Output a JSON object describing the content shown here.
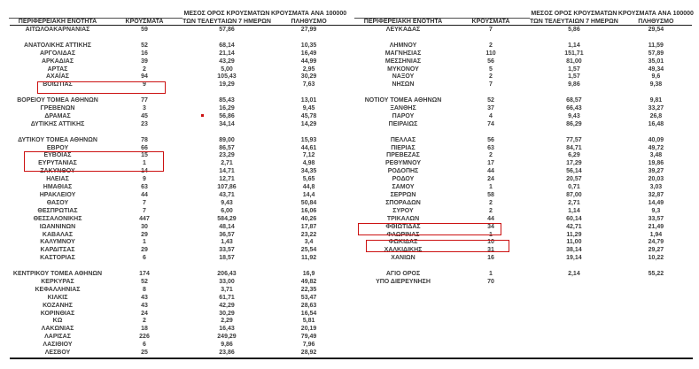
{
  "columns": {
    "region": "ΠΕΡΙΦΕΡΕΙΑΚΗ ΕΝΟΤΗΤΑ",
    "cases": "ΚΡΟΥΣΜΑΤΑ",
    "avg7_line1": "ΜΕΣΟΣ ΟΡΟΣ ΚΡΟΥΣΜΑΤΩΝ",
    "avg7_line2": "ΤΩΝ ΤΕΛΕΥΤΑΙΩΝ 7 ΗΜΕΡΩΝ",
    "per100k_line1": "ΚΡΟΥΣΜΑΤΑ ΑΝΑ 100000",
    "per100k_line2": "ΠΛΗΘΥΣΜΟ"
  },
  "tables": {
    "left": {
      "rows": [
        [
          "ΑΙΤΩΛΟΑΚΑΡΝΑΝΙΑΣ",
          "59",
          "57,86",
          "27,99"
        ],
        null,
        [
          "ΑΝΑΤΟΛΙΚΗΣ ΑΤΤΙΚΗΣ",
          "52",
          "68,14",
          "10,35"
        ],
        [
          "ΑΡΓΟΛΙΔΑΣ",
          "16",
          "21,14",
          "16,49"
        ],
        [
          "ΑΡΚΑΔΙΑΣ",
          "39",
          "43,29",
          "44,99"
        ],
        [
          "ΑΡΤΑΣ",
          "2",
          "5,00",
          "2,95"
        ],
        [
          "ΑΧΑΪΑΣ",
          "94",
          "105,43",
          "30,29"
        ],
        [
          "ΒΟΙΩΤΙΑΣ",
          "9",
          "19,29",
          "7,63"
        ],
        null,
        [
          "ΒΟΡΕΙΟΥ ΤΟΜΕΑ ΑΘΗΝΩΝ",
          "77",
          "85,43",
          "13,01"
        ],
        [
          "ΓΡΕΒΕΝΩΝ",
          "3",
          "16,29",
          "9,45"
        ],
        [
          "ΔΡΑΜΑΣ",
          "45",
          "56,86",
          "45,78"
        ],
        [
          "ΔΥΤΙΚΗΣ ΑΤΤΙΚΗΣ",
          "23",
          "34,14",
          "14,29"
        ],
        null,
        [
          "ΔΥΤΙΚΟΥ ΤΟΜΕΑ ΑΘΗΝΩΝ",
          "78",
          "89,00",
          "15,93"
        ],
        [
          "ΕΒΡΟΥ",
          "66",
          "86,57",
          "44,61"
        ],
        [
          "ΕΥΒΟΙΑΣ",
          "15",
          "23,29",
          "7,12"
        ],
        [
          "ΕΥΡΥΤΑΝΙΑΣ",
          "1",
          "2,71",
          "4,98"
        ],
        [
          "ΖΑΚΥΝΘΟΥ",
          "14",
          "14,71",
          "34,35"
        ],
        [
          "ΗΛΕΙΑΣ",
          "9",
          "12,71",
          "5,65"
        ],
        [
          "ΗΜΑΘΙΑΣ",
          "63",
          "107,86",
          "44,8"
        ],
        [
          "ΗΡΑΚΛΕΙΟΥ",
          "44",
          "43,71",
          "14,4"
        ],
        [
          "ΘΑΣΟΥ",
          "7",
          "9,43",
          "50,84"
        ],
        [
          "ΘΕΣΠΡΩΤΙΑΣ",
          "7",
          "6,00",
          "16,06"
        ],
        [
          "ΘΕΣΣΑΛΟΝΙΚΗΣ",
          "447",
          "584,29",
          "40,26"
        ],
        [
          "ΙΩΑΝΝΙΝΩΝ",
          "30",
          "48,14",
          "17,87"
        ],
        [
          "ΚΑΒΑΛΑΣ",
          "29",
          "36,57",
          "23,22"
        ],
        [
          "ΚΑΛΥΜΝΟΥ",
          "1",
          "1,43",
          "3,4"
        ],
        [
          "ΚΑΡΔΙΤΣΑΣ",
          "29",
          "33,57",
          "25,54"
        ],
        [
          "ΚΑΣΤΟΡΙΑΣ",
          "6",
          "18,57",
          "11,92"
        ],
        null,
        [
          "ΚΕΝΤΡΙΚΟΥ ΤΟΜΕΑ ΑΘΗΝΩΝ",
          "174",
          "206,43",
          "16,9"
        ],
        [
          "ΚΕΡΚΥΡΑΣ",
          "52",
          "33,00",
          "49,82"
        ],
        [
          "ΚΕΦΑΛΛΗΝΙΑΣ",
          "8",
          "3,71",
          "22,35"
        ],
        [
          "ΚΙΛΚΙΣ",
          "43",
          "61,71",
          "53,47"
        ],
        [
          "ΚΟΖΑΝΗΣ",
          "43",
          "42,29",
          "28,63"
        ],
        [
          "ΚΟΡΙΝΘΙΑΣ",
          "24",
          "30,29",
          "16,54"
        ],
        [
          "ΚΩ",
          "2",
          "2,29",
          "5,81"
        ],
        [
          "ΛΑΚΩΝΙΑΣ",
          "18",
          "16,43",
          "20,19"
        ],
        [
          "ΛΑΡΙΣΑΣ",
          "226",
          "249,29",
          "79,49"
        ],
        [
          "ΛΑΣΙΘΙΟΥ",
          "6",
          "9,86",
          "7,96"
        ],
        [
          "ΛΕΣΒΟΥ",
          "25",
          "23,86",
          "28,92"
        ]
      ]
    },
    "right": {
      "rows": [
        [
          "ΛΕΥΚΑΔΑΣ",
          "7",
          "5,86",
          "29,54"
        ],
        null,
        [
          "ΛΗΜΝΟΥ",
          "2",
          "1,14",
          "11,59"
        ],
        [
          "ΜΑΓΝΗΣΙΑΣ",
          "110",
          "151,71",
          "57,89"
        ],
        [
          "ΜΕΣΣΗΝΙΑΣ",
          "56",
          "81,00",
          "35,01"
        ],
        [
          "ΜΥΚΟΝΟΥ",
          "5",
          "1,57",
          "49,34"
        ],
        [
          "ΝΑΞΟΥ",
          "2",
          "1,57",
          "9,6"
        ],
        [
          "ΝΗΣΩΝ",
          "7",
          "9,86",
          "9,38"
        ],
        null,
        [
          "ΝΟΤΙΟΥ ΤΟΜΕΑ ΑΘΗΝΩΝ",
          "52",
          "68,57",
          "9,81"
        ],
        [
          "ΞΑΝΘΗΣ",
          "37",
          "66,43",
          "33,27"
        ],
        [
          "ΠΑΡΟΥ",
          "4",
          "9,43",
          "26,8"
        ],
        [
          "ΠΕΙΡΑΙΩΣ",
          "74",
          "86,29",
          "16,48"
        ],
        null,
        [
          "ΠΕΛΛΑΣ",
          "56",
          "77,57",
          "40,09"
        ],
        [
          "ΠΙΕΡΙΑΣ",
          "63",
          "84,71",
          "49,72"
        ],
        [
          "ΠΡΕΒΕΖΑΣ",
          "2",
          "6,29",
          "3,48"
        ],
        [
          "ΡΕΘΥΜΝΟΥ",
          "17",
          "17,29",
          "19,86"
        ],
        [
          "ΡΟΔΟΠΗΣ",
          "44",
          "56,14",
          "39,27"
        ],
        [
          "ΡΟΔΟΥ",
          "24",
          "20,57",
          "20,03"
        ],
        [
          "ΣΑΜΟΥ",
          "1",
          "0,71",
          "3,03"
        ],
        [
          "ΣΕΡΡΩΝ",
          "58",
          "87,00",
          "32,87"
        ],
        [
          "ΣΠΟΡΑΔΩΝ",
          "2",
          "2,71",
          "14,49"
        ],
        [
          "ΣΥΡΟΥ",
          "2",
          "1,14",
          "9,3"
        ],
        [
          "ΤΡΙΚΑΛΩΝ",
          "44",
          "60,14",
          "33,57"
        ],
        [
          "ΦΘΙΩΤΙΔΑΣ",
          "34",
          "42,71",
          "21,49"
        ],
        [
          "ΦΛΩΡΙΝΑΣ",
          "1",
          "11,29",
          "1,94"
        ],
        [
          "ΦΩΚΙΔΑΣ",
          "10",
          "11,00",
          "24,79"
        ],
        [
          "ΧΑΛΚΙΔΙΚΗΣ",
          "31",
          "38,14",
          "29,27"
        ],
        [
          "ΧΑΝΙΩΝ",
          "16",
          "19,14",
          "10,22"
        ],
        null,
        [
          "ΑΓΙΟ ΟΡΟΣ",
          "1",
          "2,14",
          "55,22"
        ],
        [
          "ΥΠΟ ΔΙΕΡΕΥΝΗΣΗ",
          "70",
          "",
          ""
        ]
      ]
    }
  },
  "annotations": {
    "highlight_color": "#cc1111",
    "boxed_rows": [
      "ΒΟΙΩΤΙΑΣ",
      "ΕΥΒΟΙΑΣ + ΕΥΡΥΤΑΝΙΑΣ",
      "ΦΘΙΩΤΙΔΑΣ",
      "ΦΩΚΙΔΑΣ"
    ],
    "dot_near_row": "ΔΡΑΜΑΣ"
  }
}
